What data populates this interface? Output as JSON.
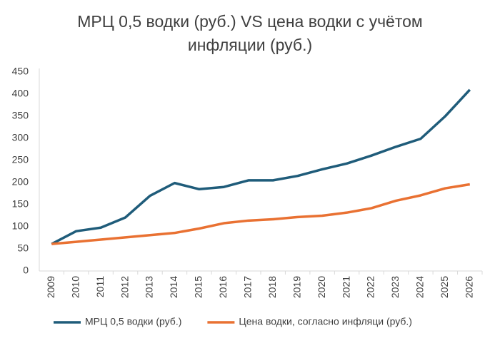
{
  "chart_data": {
    "type": "line",
    "title": "МРЦ 0,5 водки (руб.) VS цена водки с учётом инфляции (руб.)",
    "categories": [
      "2009",
      "2010",
      "2011",
      "2012",
      "2013",
      "2014",
      "2015",
      "2016",
      "2017",
      "2018",
      "2019",
      "2020",
      "2021",
      "2022",
      "2023",
      "2024",
      "2025",
      "2026"
    ],
    "series": [
      {
        "name": "МРЦ 0,5 водки (руб.)",
        "color": "#1f5c7a",
        "values": [
          61,
          90,
          98,
          121,
          170,
          199,
          185,
          190,
          205,
          205,
          215,
          230,
          243,
          261,
          281,
          299,
          350,
          410
        ]
      },
      {
        "name": "Цена водки, согласно инфляци (руб.)",
        "color": "#e97132",
        "values": [
          61,
          66,
          71,
          76,
          81,
          86,
          96,
          108,
          114,
          117,
          122,
          125,
          132,
          142,
          159,
          171,
          187,
          196
        ]
      }
    ],
    "ylim": [
      0,
      450
    ],
    "yticks": [
      0,
      50,
      100,
      150,
      200,
      250,
      300,
      350,
      400,
      450
    ],
    "grid": false,
    "legend": "bottom"
  }
}
